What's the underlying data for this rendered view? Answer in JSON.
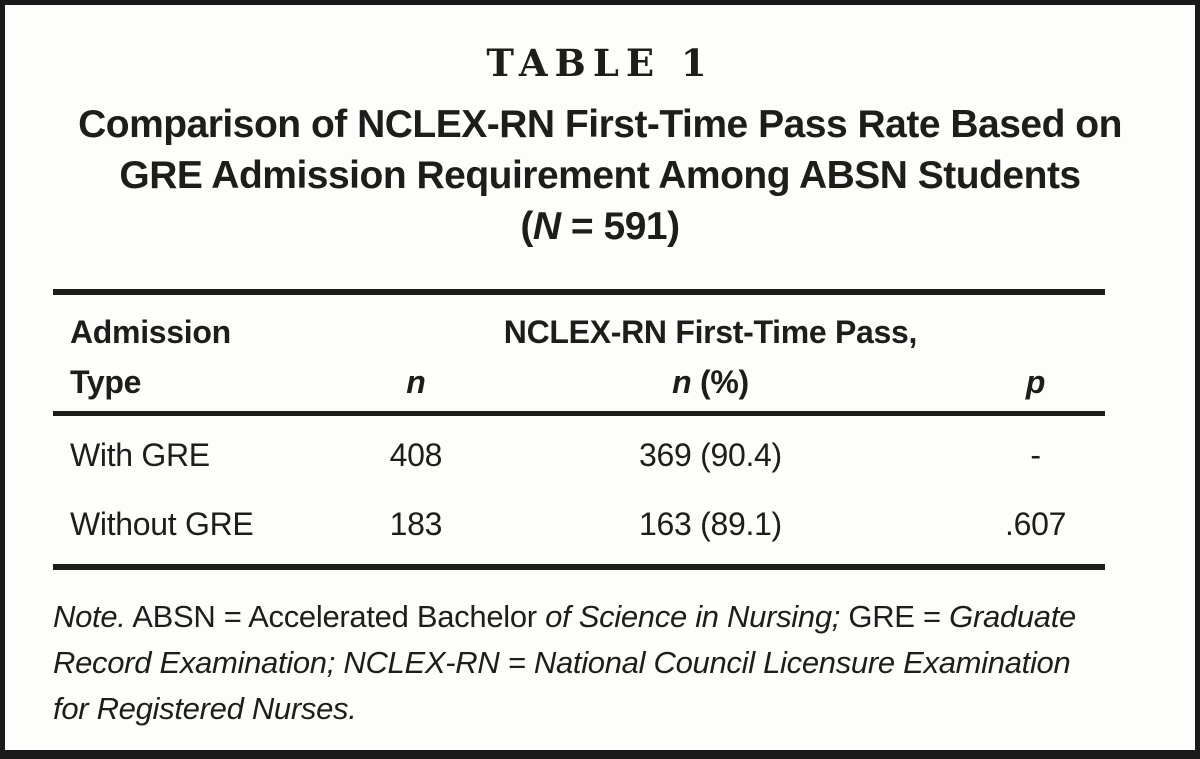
{
  "colors": {
    "ink": "#1d1d1b",
    "background": "#fdfdfc",
    "frame_border": "#1a1a1a"
  },
  "figure": {
    "label": "TABLE 1",
    "title_line1": "Comparison of NCLEX-RN First-Time Pass Rate Based on",
    "title_line2": "GRE Admission Requirement Among ABSN Students",
    "sample_open": "(",
    "sample_n": "N",
    "sample_rest": " = 591)"
  },
  "table": {
    "header": {
      "col1_line1": "Admission",
      "col1_line2": "Type",
      "n_label": "n",
      "span_label": "NCLEX-RN First-Time Pass,",
      "pass_n": "n",
      "pass_rest": " (%)",
      "p_label": "p"
    },
    "rows": [
      {
        "admission_type": "With GRE",
        "n": "408",
        "pass": "369 (90.4)",
        "p": "-"
      },
      {
        "admission_type": "Without GRE",
        "n": "183",
        "pass": "163 (89.1)",
        "p": ".607"
      }
    ]
  },
  "note": {
    "seg1": "Note.",
    "seg2": " ABSN = Accelerated Bachelor ",
    "seg3": "of Science in Nursing; ",
    "seg4": "GRE = ",
    "seg5": "Graduate Record Examination; NCLEX-RN = National Council Licensure Examination for Registered Nurses."
  }
}
